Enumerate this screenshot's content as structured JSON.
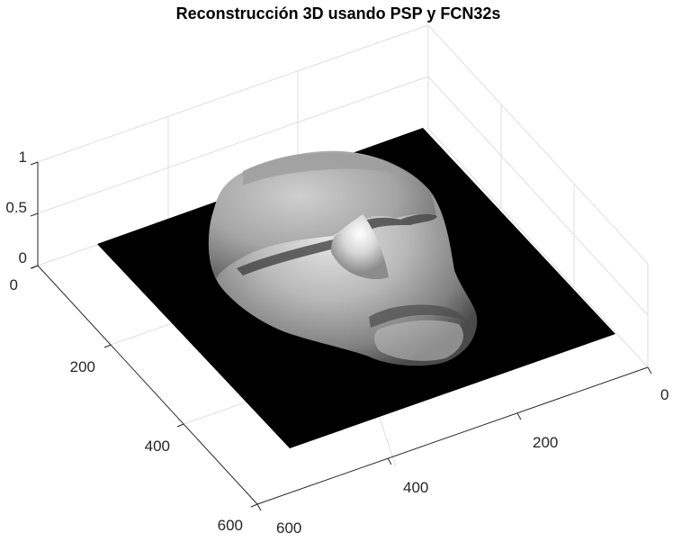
{
  "chart_data": {
    "type": "surface",
    "title": "Reconstrucción 3D usando PSP y FCN32s",
    "xlabel": "",
    "ylabel": "",
    "zlabel": "",
    "x_axis": {
      "ticks": [
        0,
        200,
        400,
        600
      ],
      "tick_labels": [
        "0",
        "200",
        "400",
        "600"
      ],
      "range": [
        0,
        600
      ]
    },
    "y_axis": {
      "ticks": [
        0,
        200,
        400,
        600
      ],
      "tick_labels": [
        "0",
        "200",
        "400",
        "600"
      ],
      "range": [
        0,
        600
      ]
    },
    "z_axis": {
      "ticks": [
        0,
        0.5,
        1
      ],
      "tick_labels": [
        "0",
        "0.5",
        "1"
      ],
      "range": [
        0,
        1
      ]
    },
    "grid": true,
    "colormap": "gray",
    "surface_description_values": {
      "base_height": 0,
      "face_max_height": 0.7
    }
  },
  "colors": {
    "background": "#ffffff",
    "plane": "#000000",
    "grid": "#dedede",
    "axis": "#262626"
  }
}
